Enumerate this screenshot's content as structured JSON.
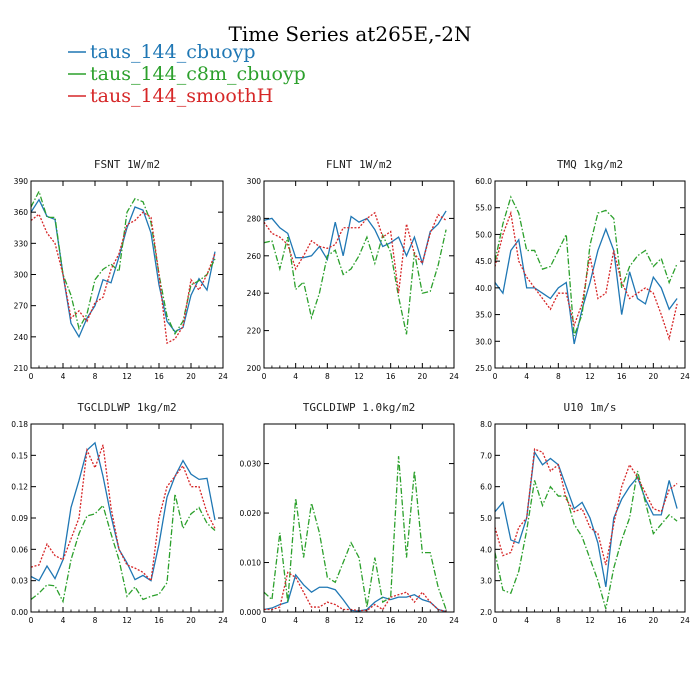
{
  "figure": {
    "title": "Time Series at265E,-2N",
    "legend": [
      {
        "name": "taus_144_cbuoyp",
        "color": "#1f77b4",
        "dash": "solid"
      },
      {
        "name": "taus_144_c8m_cbuoyp",
        "color": "#2ca02c",
        "dash": "dashdot"
      },
      {
        "name": "taus_144_smoothH",
        "color": "#d62728",
        "dash": "dotted"
      }
    ]
  },
  "chart_data": [
    {
      "type": "line",
      "title": "FSNT   1W/m2",
      "x": [
        0,
        1,
        2,
        3,
        4,
        5,
        6,
        7,
        8,
        9,
        10,
        11,
        12,
        13,
        14,
        15,
        16,
        17,
        18,
        19,
        20,
        21,
        22,
        23
      ],
      "xlim": [
        0,
        24
      ],
      "xticks": [
        0,
        4,
        8,
        12,
        16,
        20,
        24
      ],
      "xtick_labels": [
        "0",
        "4",
        "8",
        "12",
        "16",
        "20",
        "24"
      ],
      "ylim": [
        210,
        390
      ],
      "yticks": [
        210,
        240,
        270,
        300,
        330,
        360,
        390
      ],
      "ytick_labels": [
        "210",
        "240",
        "270",
        "300",
        "330",
        "360",
        "390"
      ],
      "series": [
        {
          "name": "taus_144_cbuoyp",
          "values": [
            360,
            372,
            356,
            353,
            300,
            253,
            240,
            258,
            270,
            295,
            292,
            317,
            345,
            365,
            362,
            340,
            290,
            255,
            245,
            249,
            280,
            296,
            285,
            322
          ]
        },
        {
          "name": "taus_144_c8m_cbuoyp",
          "values": [
            365,
            380,
            355,
            355,
            300,
            280,
            248,
            262,
            295,
            305,
            310,
            303,
            360,
            373,
            370,
            350,
            300,
            260,
            243,
            255,
            290,
            294,
            300,
            315
          ]
        },
        {
          "name": "taus_144_smoothH",
          "values": [
            352,
            358,
            340,
            330,
            300,
            258,
            265,
            255,
            273,
            278,
            305,
            320,
            348,
            352,
            360,
            355,
            300,
            234,
            238,
            250,
            295,
            285,
            300,
            320
          ]
        }
      ]
    },
    {
      "type": "line",
      "title": "FLNT   1W/m2",
      "x": [
        0,
        1,
        2,
        3,
        4,
        5,
        6,
        7,
        8,
        9,
        10,
        11,
        12,
        13,
        14,
        15,
        16,
        17,
        18,
        19,
        20,
        21,
        22,
        23
      ],
      "xlim": [
        0,
        24
      ],
      "xticks": [
        0,
        4,
        8,
        12,
        16,
        20,
        24
      ],
      "xtick_labels": [
        "0",
        "4",
        "8",
        "12",
        "16",
        "20",
        "24"
      ],
      "ylim": [
        200,
        300
      ],
      "yticks": [
        200,
        220,
        240,
        260,
        280,
        300
      ],
      "ytick_labels": [
        "200",
        "220",
        "240",
        "260",
        "280",
        "300"
      ],
      "series": [
        {
          "name": "taus_144_cbuoyp",
          "values": [
            279,
            280,
            275,
            272,
            259,
            259,
            260,
            265,
            258,
            278,
            260,
            281,
            278,
            280,
            274,
            265,
            267,
            270,
            260,
            270,
            256,
            273,
            277,
            284
          ]
        },
        {
          "name": "taus_144_c8m_cbuoyp",
          "values": [
            267,
            268,
            253,
            270,
            242,
            246,
            227,
            240,
            260,
            263,
            250,
            253,
            260,
            270,
            256,
            271,
            262,
            238,
            218,
            262,
            240,
            241,
            255,
            274
          ]
        },
        {
          "name": "taus_144_smoothH",
          "values": [
            278,
            272,
            270,
            266,
            253,
            260,
            268,
            265,
            264,
            266,
            275,
            275,
            275,
            280,
            283,
            270,
            273,
            240,
            277,
            261,
            256,
            272,
            282,
            279
          ]
        }
      ]
    },
    {
      "type": "line",
      "title": "TMQ   1kg/m2",
      "x": [
        0,
        1,
        2,
        3,
        4,
        5,
        6,
        7,
        8,
        9,
        10,
        11,
        12,
        13,
        14,
        15,
        16,
        17,
        18,
        19,
        20,
        21,
        22,
        23
      ],
      "xlim": [
        0,
        24
      ],
      "xticks": [
        0,
        4,
        8,
        12,
        16,
        20,
        24
      ],
      "xtick_labels": [
        "0",
        "4",
        "8",
        "12",
        "16",
        "20",
        "24"
      ],
      "ylim": [
        25,
        60
      ],
      "yticks": [
        25,
        30,
        35,
        40,
        45,
        50,
        55,
        60
      ],
      "ytick_labels": [
        "25.0",
        "30.0",
        "35.0",
        "40.0",
        "45.0",
        "50.0",
        "55.0",
        "60.0"
      ],
      "series": [
        {
          "name": "taus_144_cbuoyp",
          "values": [
            41,
            39,
            47,
            49,
            40,
            40,
            39,
            38,
            40,
            41,
            29.5,
            36,
            41,
            47,
            51,
            47,
            35,
            43,
            38,
            37,
            42,
            40,
            36,
            38
          ]
        },
        {
          "name": "taus_144_c8m_cbuoyp",
          "values": [
            45,
            52,
            57,
            54,
            47,
            47,
            43.5,
            44,
            47,
            50,
            31,
            35,
            48,
            54,
            54.5,
            53,
            40,
            44,
            46,
            47,
            44,
            45.5,
            41,
            44.5
          ]
        },
        {
          "name": "taus_144_smoothH",
          "values": [
            44,
            50,
            54,
            45,
            42,
            40,
            38,
            36,
            39,
            39,
            33,
            37,
            46,
            38,
            39,
            47,
            41,
            38,
            39,
            40,
            39,
            35,
            30.5,
            37
          ]
        }
      ]
    },
    {
      "type": "line",
      "title": "TGCLDLWP   1kg/m2",
      "x": [
        0,
        1,
        2,
        3,
        4,
        5,
        6,
        7,
        8,
        9,
        10,
        11,
        12,
        13,
        14,
        15,
        16,
        17,
        18,
        19,
        20,
        21,
        22,
        23
      ],
      "xlim": [
        0,
        24
      ],
      "xticks": [
        0,
        4,
        8,
        12,
        16,
        20,
        24
      ],
      "xtick_labels": [
        "0",
        "4",
        "8",
        "12",
        "16",
        "20",
        "24"
      ],
      "ylim": [
        0,
        0.18
      ],
      "yticks": [
        0,
        0.03,
        0.06,
        0.09,
        0.12,
        0.15,
        0.18
      ],
      "ytick_labels": [
        "0.00",
        "0.03",
        "0.06",
        "0.09",
        "0.12",
        "0.15",
        "0.18"
      ],
      "series": [
        {
          "name": "taus_144_cbuoyp",
          "values": [
            0.034,
            0.03,
            0.044,
            0.032,
            0.05,
            0.1,
            0.126,
            0.155,
            0.162,
            0.13,
            0.092,
            0.06,
            0.047,
            0.031,
            0.035,
            0.03,
            0.065,
            0.11,
            0.13,
            0.145,
            0.132,
            0.127,
            0.128,
            0.088
          ]
        },
        {
          "name": "taus_144_c8m_cbuoyp",
          "values": [
            0.012,
            0.018,
            0.026,
            0.025,
            0.01,
            0.05,
            0.075,
            0.092,
            0.094,
            0.102,
            0.075,
            0.05,
            0.015,
            0.024,
            0.012,
            0.015,
            0.017,
            0.028,
            0.113,
            0.08,
            0.094,
            0.1,
            0.085,
            0.078
          ]
        },
        {
          "name": "taus_144_smoothH",
          "values": [
            0.043,
            0.045,
            0.065,
            0.054,
            0.05,
            0.07,
            0.09,
            0.155,
            0.138,
            0.16,
            0.1,
            0.06,
            0.045,
            0.042,
            0.038,
            0.03,
            0.09,
            0.12,
            0.13,
            0.14,
            0.12,
            0.12,
            0.095,
            0.08
          ]
        }
      ]
    },
    {
      "type": "line",
      "title": "TGCLDIWP   1.0kg/m2",
      "x": [
        0,
        1,
        2,
        3,
        4,
        5,
        6,
        7,
        8,
        9,
        10,
        11,
        12,
        13,
        14,
        15,
        16,
        17,
        18,
        19,
        20,
        21,
        22,
        23
      ],
      "xlim": [
        0,
        24
      ],
      "xticks": [
        0,
        4,
        8,
        12,
        16,
        20,
        24
      ],
      "xtick_labels": [
        "0",
        "4",
        "8",
        "12",
        "16",
        "20",
        "24"
      ],
      "ylim": [
        0,
        0.038
      ],
      "yticks": [
        0,
        0.01,
        0.02,
        0.03
      ],
      "ytick_labels": [
        "0.000",
        "0.010",
        "0.020",
        "0.030"
      ],
      "series": [
        {
          "name": "taus_144_cbuoyp",
          "values": [
            0.0005,
            0.0008,
            0.0015,
            0.002,
            0.0075,
            0.0055,
            0.004,
            0.005,
            0.005,
            0.0045,
            0.0025,
            0.0003,
            0.0002,
            0.0005,
            0.002,
            0.003,
            0.0025,
            0.003,
            0.003,
            0.0035,
            0.0025,
            0.002,
            0.0005,
            0.0001
          ]
        },
        {
          "name": "taus_144_c8m_cbuoyp",
          "values": [
            0.004,
            0.0025,
            0.016,
            0.002,
            0.023,
            0.011,
            0.022,
            0.016,
            0.007,
            0.006,
            0.01,
            0.014,
            0.011,
            0.001,
            0.011,
            0.002,
            0.003,
            0.0315,
            0.011,
            0.0285,
            0.012,
            0.012,
            0.005,
            0.0005
          ]
        },
        {
          "name": "taus_144_smoothH",
          "values": [
            0.0005,
            0.0005,
            0.001,
            0.008,
            0.007,
            0.004,
            0.001,
            0.001,
            0.002,
            0.0015,
            0.0005,
            0.0005,
            0.0003,
            0.0003,
            0.0015,
            0.0005,
            0.003,
            0.0035,
            0.004,
            0.002,
            0.004,
            0.002,
            0.0005,
            0.0001
          ]
        }
      ]
    },
    {
      "type": "line",
      "title": "U10   1m/s",
      "x": [
        0,
        1,
        2,
        3,
        4,
        5,
        6,
        7,
        8,
        9,
        10,
        11,
        12,
        13,
        14,
        15,
        16,
        17,
        18,
        19,
        20,
        21,
        22,
        23
      ],
      "xlim": [
        0,
        24
      ],
      "xticks": [
        0,
        4,
        8,
        12,
        16,
        20,
        24
      ],
      "xtick_labels": [
        "0",
        "4",
        "8",
        "12",
        "16",
        "20",
        "24"
      ],
      "ylim": [
        2,
        8
      ],
      "yticks": [
        2,
        3,
        4,
        5,
        6,
        7,
        8
      ],
      "ytick_labels": [
        "2.0",
        "3.0",
        "4.0",
        "5.0",
        "6.0",
        "7.0",
        "8.0"
      ],
      "series": [
        {
          "name": "taus_144_cbuoyp",
          "values": [
            5.2,
            5.5,
            4.3,
            4.2,
            5,
            7.1,
            6.7,
            6.9,
            6.7,
            6,
            5.3,
            5.5,
            5,
            4.2,
            2.8,
            5,
            5.6,
            6,
            6.3,
            5.6,
            5.1,
            5.1,
            6.2,
            5.3
          ]
        },
        {
          "name": "taus_144_c8m_cbuoyp",
          "values": [
            3.9,
            2.7,
            2.6,
            3.3,
            4.6,
            6.2,
            5.4,
            6,
            5.7,
            5.7,
            4.8,
            4.4,
            3.7,
            3,
            2.1,
            3.4,
            4.3,
            5,
            6.5,
            5.5,
            4.5,
            4.8,
            5.1,
            4.9
          ]
        },
        {
          "name": "taus_144_smoothH",
          "values": [
            4.7,
            3.8,
            3.9,
            4.7,
            5,
            7.2,
            7.1,
            6.5,
            6.7,
            5.6,
            5.2,
            5.3,
            4.7,
            4.5,
            3.5,
            4.8,
            6,
            6.7,
            6.3,
            5.8,
            5.3,
            5.2,
            5.9,
            6.1
          ]
        }
      ]
    }
  ]
}
